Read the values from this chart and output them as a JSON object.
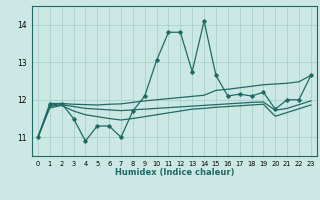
{
  "xlabel": "Humidex (Indice chaleur)",
  "ylabel": "",
  "bg_color": "#cce8e5",
  "grid_color": "#aed4cf",
  "line_color": "#1f6b64",
  "xlim": [
    -0.5,
    23.5
  ],
  "ylim": [
    10.5,
    14.5
  ],
  "yticks": [
    11,
    12,
    13,
    14
  ],
  "xticks": [
    0,
    1,
    2,
    3,
    4,
    5,
    6,
    7,
    8,
    9,
    10,
    11,
    12,
    13,
    14,
    15,
    16,
    17,
    18,
    19,
    20,
    21,
    22,
    23
  ],
  "series_main": [
    11.0,
    11.9,
    11.9,
    11.5,
    10.9,
    11.3,
    11.3,
    11.0,
    11.7,
    12.1,
    13.05,
    13.8,
    13.8,
    12.75,
    14.1,
    12.65,
    12.1,
    12.15,
    12.1,
    12.2,
    11.75,
    12.0,
    12.0,
    12.65
  ],
  "series_high": [
    11.0,
    11.85,
    11.9,
    11.88,
    11.87,
    11.86,
    11.88,
    11.89,
    11.93,
    11.97,
    12.0,
    12.03,
    12.06,
    12.09,
    12.12,
    12.25,
    12.28,
    12.32,
    12.36,
    12.4,
    12.42,
    12.44,
    12.48,
    12.65
  ],
  "series_mid": [
    11.0,
    11.82,
    11.87,
    11.82,
    11.77,
    11.75,
    11.73,
    11.71,
    11.73,
    11.75,
    11.77,
    11.79,
    11.81,
    11.83,
    11.85,
    11.87,
    11.89,
    11.91,
    11.93,
    11.94,
    11.72,
    11.77,
    11.87,
    11.97
  ],
  "series_low": [
    11.0,
    11.78,
    11.85,
    11.7,
    11.6,
    11.55,
    11.5,
    11.46,
    11.5,
    11.55,
    11.6,
    11.65,
    11.7,
    11.75,
    11.77,
    11.8,
    11.82,
    11.84,
    11.86,
    11.88,
    11.56,
    11.66,
    11.76,
    11.86
  ]
}
